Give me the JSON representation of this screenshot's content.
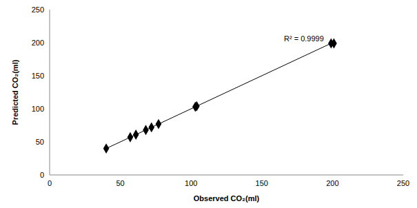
{
  "chart_data": {
    "type": "scatter",
    "x_label": "Observed CO₂(ml)",
    "y_label": "Predicted CO₂(ml)",
    "annotation": "R² = 0.9999",
    "series": [
      {
        "x": [
          40,
          57,
          61,
          68,
          72,
          77,
          103,
          104,
          199,
          201
        ],
        "values": [
          40,
          57,
          61,
          68,
          72,
          77,
          103,
          104,
          199,
          199
        ],
        "color": "#000000",
        "marker": "diamond",
        "line_style": "solid"
      }
    ],
    "xlim": [
      0,
      250
    ],
    "ylim": [
      0,
      250
    ],
    "xticks": [
      0,
      50,
      100,
      150,
      200,
      250
    ],
    "yticks": [
      0,
      50,
      100,
      150,
      200,
      250
    ],
    "grid": false
  }
}
